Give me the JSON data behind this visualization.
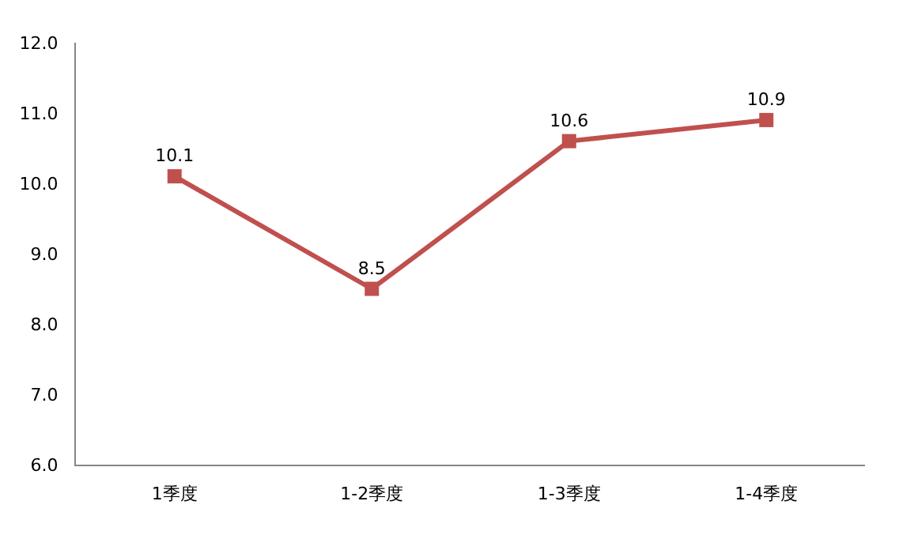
{
  "chart_data": {
    "type": "line",
    "categories": [
      "1季度",
      "1-2季度",
      "1-3季度",
      "1-4季度"
    ],
    "series": [
      {
        "color": "#c0504d",
        "values": [
          10.1,
          8.5,
          10.6,
          10.9
        ]
      }
    ],
    "ylim": [
      6,
      12
    ],
    "yticks": [
      {
        "value": 6,
        "label": "6.0"
      },
      {
        "value": 7,
        "label": "7.0"
      },
      {
        "value": 8,
        "label": "8.0"
      },
      {
        "value": 9,
        "label": "9.0"
      },
      {
        "value": 10,
        "label": "10.0"
      },
      {
        "value": 11,
        "label": "11.0"
      },
      {
        "value": 12,
        "label": "12.0"
      }
    ],
    "data_labels": true,
    "marker": "square",
    "line_style": "solid"
  }
}
